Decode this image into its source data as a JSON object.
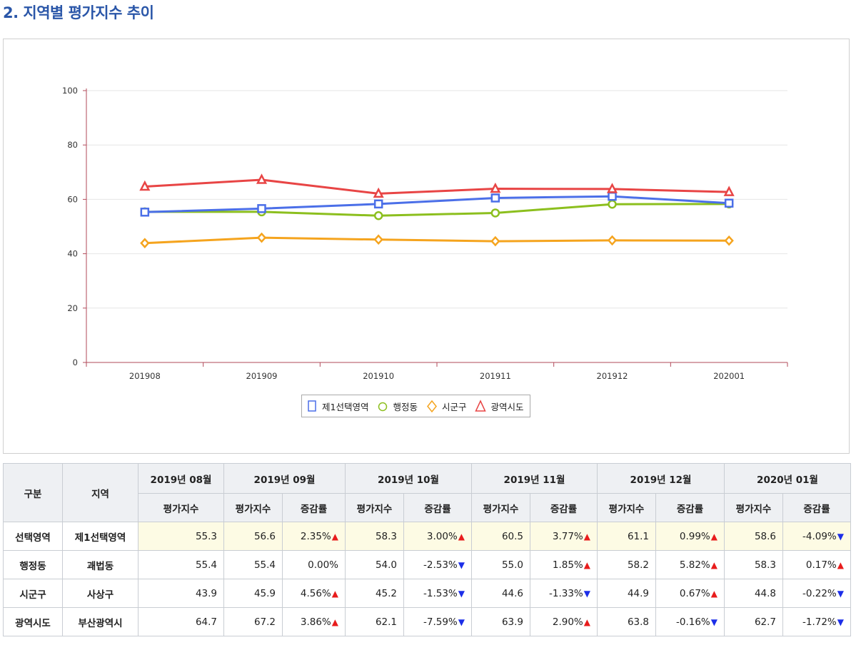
{
  "page": {
    "section_title": "2. 지역별 평가지수 추이"
  },
  "chart_data": {
    "type": "line",
    "categories": [
      "201908",
      "201909",
      "201910",
      "201911",
      "201912",
      "202001"
    ],
    "ylim": [
      0,
      100
    ],
    "y_ticks": [
      "0",
      "20",
      "40",
      "60",
      "80",
      "100"
    ],
    "grid": "horizontal",
    "legend_position": "bottom-center",
    "series": [
      {
        "name": "제1선택영역",
        "color": "#4b6fe8",
        "marker": "square",
        "values": [
          55.3,
          56.6,
          58.3,
          60.5,
          61.1,
          58.6
        ]
      },
      {
        "name": "행정동",
        "color": "#8cbf1e",
        "marker": "circle",
        "values": [
          55.4,
          55.4,
          54.0,
          55.0,
          58.2,
          58.3
        ]
      },
      {
        "name": "시군구",
        "color": "#f5a41e",
        "marker": "diamond",
        "values": [
          43.9,
          45.9,
          45.2,
          44.6,
          44.9,
          44.8
        ]
      },
      {
        "name": "광역시도",
        "color": "#e84545",
        "marker": "triangle",
        "values": [
          64.7,
          67.2,
          62.1,
          63.9,
          63.8,
          62.7
        ]
      }
    ]
  },
  "table": {
    "header_category": "구분",
    "header_region": "지역",
    "sub_index": "평가지수",
    "sub_rate": "증감률",
    "months": [
      "2019년 08월",
      "2019년 09월",
      "2019년 10월",
      "2019년 11월",
      "2019년 12월",
      "2020년 01월"
    ],
    "rows": [
      {
        "category": "선택영역",
        "region": "제1선택영역",
        "highlight": true,
        "first_index": "55.3",
        "pairs": [
          {
            "index": "56.6",
            "rate": "2.35%",
            "dir": "up"
          },
          {
            "index": "58.3",
            "rate": "3.00%",
            "dir": "up"
          },
          {
            "index": "60.5",
            "rate": "3.77%",
            "dir": "up"
          },
          {
            "index": "61.1",
            "rate": "0.99%",
            "dir": "up"
          },
          {
            "index": "58.6",
            "rate": "-4.09%",
            "dir": "down"
          }
        ]
      },
      {
        "category": "행정동",
        "region": "괘법동",
        "highlight": false,
        "first_index": "55.4",
        "pairs": [
          {
            "index": "55.4",
            "rate": "0.00%",
            "dir": ""
          },
          {
            "index": "54.0",
            "rate": "-2.53%",
            "dir": "down"
          },
          {
            "index": "55.0",
            "rate": "1.85%",
            "dir": "up"
          },
          {
            "index": "58.2",
            "rate": "5.82%",
            "dir": "up"
          },
          {
            "index": "58.3",
            "rate": "0.17%",
            "dir": "up"
          }
        ]
      },
      {
        "category": "시군구",
        "region": "사상구",
        "highlight": false,
        "first_index": "43.9",
        "pairs": [
          {
            "index": "45.9",
            "rate": "4.56%",
            "dir": "up"
          },
          {
            "index": "45.2",
            "rate": "-1.53%",
            "dir": "down"
          },
          {
            "index": "44.6",
            "rate": "-1.33%",
            "dir": "down"
          },
          {
            "index": "44.9",
            "rate": "0.67%",
            "dir": "up"
          },
          {
            "index": "44.8",
            "rate": "-0.22%",
            "dir": "down"
          }
        ]
      },
      {
        "category": "광역시도",
        "region": "부산광역시",
        "highlight": false,
        "first_index": "64.7",
        "pairs": [
          {
            "index": "67.2",
            "rate": "3.86%",
            "dir": "up"
          },
          {
            "index": "62.1",
            "rate": "-7.59%",
            "dir": "down"
          },
          {
            "index": "63.9",
            "rate": "2.90%",
            "dir": "up"
          },
          {
            "index": "63.8",
            "rate": "-0.16%",
            "dir": "down"
          },
          {
            "index": "62.7",
            "rate": "-1.72%",
            "dir": "down"
          }
        ]
      }
    ]
  }
}
